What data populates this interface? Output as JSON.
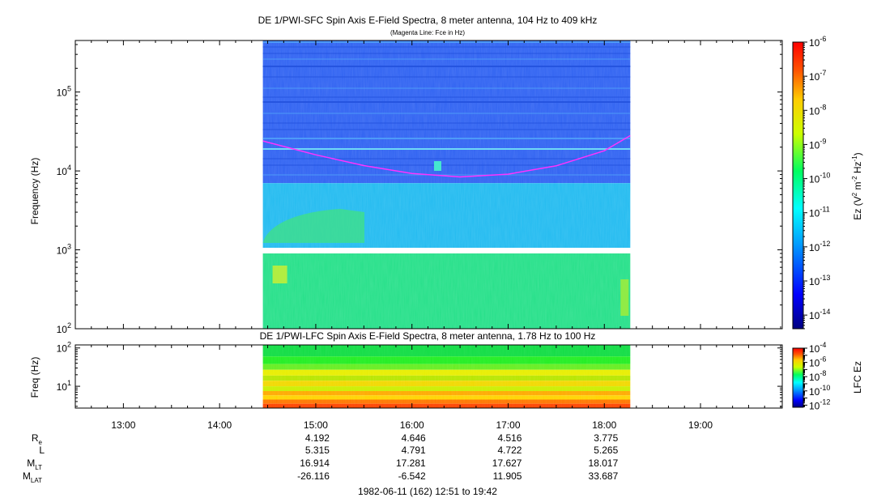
{
  "chart_data": [
    {
      "type": "heatmap",
      "title": "DE 1/PWI-SFC  Spin Axis E-Field Spectra, 8 meter antenna, 104 Hz to 409 kHz",
      "subtitle": "(Magenta Line: Fce in Hz)",
      "ylabel": "Frequency (Hz)",
      "yscale": "log",
      "ylim": [
        100,
        450000
      ],
      "yticks": [
        {
          "value": 100,
          "base": "10",
          "exp": "2"
        },
        {
          "value": 1000,
          "base": "10",
          "exp": "3"
        },
        {
          "value": 10000,
          "base": "10",
          "exp": "4"
        },
        {
          "value": 100000,
          "base": "10",
          "exp": "5"
        }
      ],
      "x_range_hours": [
        12.5,
        19.85
      ],
      "data_coverage_hours": [
        14.45,
        18.27
      ],
      "gap_band_hz": [
        900,
        1060
      ],
      "bands": [
        {
          "f_lo": 7000,
          "f_hi": 450000,
          "color": "#2f62f2",
          "description": "blue"
        },
        {
          "f_lo": 1060,
          "f_hi": 7000,
          "color": "#22bbf0",
          "description": "cyan"
        },
        {
          "f_lo": 100,
          "f_hi": 900,
          "color": "#25e089",
          "description": "green"
        }
      ],
      "fce_line": {
        "color": "#ff33ff",
        "points": [
          [
            14.45,
            24000
          ],
          [
            15.0,
            16000
          ],
          [
            15.5,
            11700
          ],
          [
            16.0,
            9300
          ],
          [
            16.5,
            8400
          ],
          [
            17.0,
            9100
          ],
          [
            17.5,
            11600
          ],
          [
            18.0,
            18000
          ],
          [
            18.27,
            28000
          ]
        ]
      },
      "colorbar": {
        "label_base": "Ez (V",
        "label_tail": " m",
        "label_end": " Hz",
        "label_sup1": "2",
        "label_sup2": "-2",
        "label_sup3": "-1",
        "label_close": ")",
        "min_exp": -14.4,
        "max_exp": -6,
        "ticks": [
          {
            "base": "10",
            "exp": "-6"
          },
          {
            "base": "10",
            "exp": "-7"
          },
          {
            "base": "10",
            "exp": "-8"
          },
          {
            "base": "10",
            "exp": "-9"
          },
          {
            "base": "10",
            "exp": "-10"
          },
          {
            "base": "10",
            "exp": "-11"
          },
          {
            "base": "10",
            "exp": "-12"
          },
          {
            "base": "10",
            "exp": "-13"
          },
          {
            "base": "10",
            "exp": "-14"
          }
        ]
      }
    },
    {
      "type": "heatmap",
      "title": "DE 1/PWI-LFC  Spin Axis E-Field Spectra, 8 meter antenna, 1.78 Hz to 100 Hz",
      "ylabel": "Freq (Hz)",
      "yscale": "log",
      "ylim": [
        2.7,
        120
      ],
      "yticks": [
        {
          "value": 10,
          "base": "10",
          "exp": "1"
        },
        {
          "value": 100,
          "base": "10",
          "exp": "2"
        }
      ],
      "rows": [
        {
          "f_lo": 60,
          "f_hi": 120,
          "color": "#11dd44"
        },
        {
          "f_lo": 38,
          "f_hi": 60,
          "color": "#22ee22"
        },
        {
          "f_lo": 27,
          "f_hi": 38,
          "color": "#66ee22"
        },
        {
          "f_lo": 19,
          "f_hi": 27,
          "color": "#e8ee00"
        },
        {
          "f_lo": 14,
          "f_hi": 19,
          "color": "#b8e600"
        },
        {
          "f_lo": 10,
          "f_hi": 14,
          "color": "#f2d800"
        },
        {
          "f_lo": 7.5,
          "f_hi": 10,
          "color": "#ccee00"
        },
        {
          "f_lo": 5.8,
          "f_hi": 7.5,
          "color": "#ffaa00"
        },
        {
          "f_lo": 4.5,
          "f_hi": 5.8,
          "color": "#ffd400"
        },
        {
          "f_lo": 3.5,
          "f_hi": 4.5,
          "color": "#ff7700"
        },
        {
          "f_lo": 2.7,
          "f_hi": 3.5,
          "color": "#ff4400"
        }
      ],
      "colorbar": {
        "label": "LFC Ez",
        "min_exp": -12.3,
        "max_exp": -4,
        "ticks": [
          {
            "base": "10",
            "exp": "-4"
          },
          {
            "base": "10",
            "exp": "-6"
          },
          {
            "base": "10",
            "exp": "-8"
          },
          {
            "base": "10",
            "exp": "-10"
          },
          {
            "base": "10",
            "exp": "-12"
          }
        ]
      }
    }
  ],
  "time_axis": {
    "start_hours": 12.5,
    "end_hours": 19.85,
    "ticks": [
      {
        "hours": 13,
        "label": "13:00"
      },
      {
        "hours": 14,
        "label": "14:00"
      },
      {
        "hours": 15,
        "label": "15:00"
      },
      {
        "hours": 16,
        "label": "16:00"
      },
      {
        "hours": 17,
        "label": "17:00"
      },
      {
        "hours": 18,
        "label": "18:00"
      },
      {
        "hours": 19,
        "label": "19:00"
      }
    ]
  },
  "ephemeris": {
    "rows": [
      {
        "label": "R",
        "sub": "e",
        "values": [
          "4.192",
          "4.646",
          "4.516",
          "3.775"
        ]
      },
      {
        "label": "L",
        "sub": "",
        "values": [
          "5.315",
          "4.791",
          "4.722",
          "5.265"
        ]
      },
      {
        "label": "M",
        "sub": "LT",
        "values": [
          "16.914",
          "17.281",
          "17.627",
          "18.017"
        ]
      },
      {
        "label": "M",
        "sub": "LAT",
        "values": [
          "-26.116",
          "-6.542",
          "11.905",
          "33.687"
        ]
      }
    ],
    "column_hours": [
      15,
      16,
      17,
      18
    ]
  },
  "footer": "1982-06-11 (162) 12:51 to 19:42"
}
